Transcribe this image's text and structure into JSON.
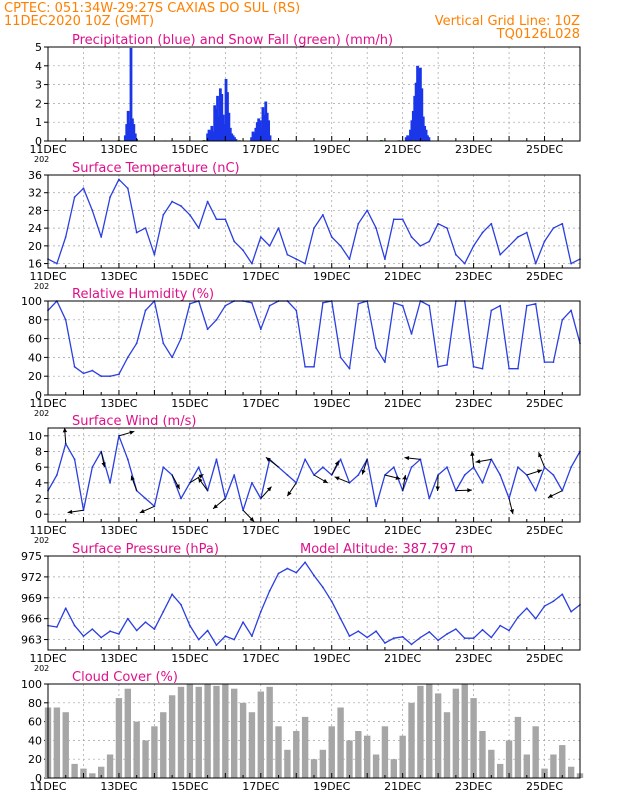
{
  "header": {
    "station": "CPTEC:  051:34W-29:27S  CAXIAS DO SUL (RS)",
    "run": "11DEC2020 10Z (GMT)",
    "grid_note": "Vertical Grid Line: 10Z",
    "code": "TQ0126L028",
    "clipped_label": "202"
  },
  "colors": {
    "header": "#ff8000",
    "title": "#e0108a",
    "line": "#2b3fe0",
    "precip": "#1a36e8",
    "snow": "#19a319",
    "cloud": "#a6a6a6",
    "grid": "#a0a0a0",
    "wind_arrow": "#000000"
  },
  "date_labels": [
    "11DEC",
    "13DEC",
    "15DEC",
    "17DEC",
    "19DEC",
    "21DEC",
    "23DEC",
    "25DEC"
  ],
  "chart_data": [
    {
      "id": "precip",
      "type": "bar",
      "title": "Precipitation (blue) and Snow Fall (green) (mm/h)",
      "ylim": [
        0,
        5
      ],
      "yticks": [
        "0",
        "1",
        "2",
        "3",
        "4",
        "5"
      ],
      "x_unit": "days since 11DEC2020 10Z",
      "series": [
        {
          "name": "Precipitation",
          "color": "#1a36e8",
          "x": [
            2.18,
            2.22,
            2.26,
            2.3,
            2.34,
            2.38,
            2.42,
            2.46,
            2.5,
            4.5,
            4.54,
            4.58,
            4.62,
            4.66,
            4.7,
            4.74,
            4.78,
            4.82,
            4.86,
            4.9,
            4.94,
            4.98,
            5.02,
            5.06,
            5.1,
            5.14,
            5.18,
            5.22,
            5.26,
            5.3,
            5.74,
            5.78,
            5.82,
            5.86,
            5.9,
            5.94,
            5.98,
            6.02,
            6.06,
            6.1,
            6.14,
            6.18,
            6.22,
            6.26,
            10.1,
            10.14,
            10.18,
            10.22,
            10.26,
            10.3,
            10.34,
            10.38,
            10.42,
            10.46,
            10.5,
            10.54,
            10.58,
            10.62,
            10.66,
            10.7,
            10.74
          ],
          "values": [
            0.3,
            0.9,
            1.6,
            1.0,
            4.95,
            1.2,
            0.9,
            0.4,
            0.1,
            0.4,
            0.6,
            0.5,
            0.8,
            0.5,
            1.9,
            1.7,
            2.4,
            1.3,
            2.8,
            2.5,
            1.4,
            0.9,
            3.3,
            2.6,
            1.5,
            0.7,
            0.4,
            0.3,
            0.2,
            0.1,
            0.2,
            0.5,
            0.4,
            0.7,
            1.0,
            1.2,
            1.1,
            0.6,
            1.8,
            1.4,
            2.1,
            1.5,
            1.1,
            0.3,
            0.2,
            0.3,
            0.2,
            0.6,
            1.1,
            1.6,
            2.4,
            3.1,
            4.0,
            3.5,
            3.9,
            2.8,
            1.3,
            0.8,
            0.6,
            0.3,
            0.2
          ]
        },
        {
          "name": "Snow Fall",
          "color": "#19a319",
          "x": [
            2.0,
            2.5,
            3.3,
            4.4,
            5.4,
            6.5,
            9.4,
            9.9,
            10.3
          ],
          "values": [
            0.05,
            0.04,
            0.03,
            0.05,
            0.04,
            0.05,
            0.05,
            0.04,
            0.04
          ]
        }
      ]
    },
    {
      "id": "temp",
      "type": "line",
      "title": "Surface Temperature (nC)",
      "ylim": [
        15,
        36
      ],
      "yticks": [
        "16",
        "20",
        "24",
        "28",
        "32",
        "36"
      ],
      "x": [
        0,
        0.25,
        0.5,
        0.75,
        1,
        1.25,
        1.5,
        1.75,
        2,
        2.25,
        2.5,
        2.75,
        3,
        3.25,
        3.5,
        3.75,
        4,
        4.25,
        4.5,
        4.75,
        5,
        5.25,
        5.5,
        5.75,
        6,
        6.25,
        6.5,
        6.75,
        7,
        7.25,
        7.5,
        7.75,
        8,
        8.25,
        8.5,
        8.75,
        9,
        9.25,
        9.5,
        9.75,
        10,
        10.25,
        10.5,
        10.75,
        11,
        11.25,
        11.5,
        11.75,
        12,
        12.25,
        12.5,
        12.75,
        13,
        13.25,
        13.5,
        13.75,
        14,
        14.25,
        14.5,
        14.75,
        15
      ],
      "values": [
        17,
        16,
        22,
        31,
        33,
        28,
        22,
        31,
        35,
        33,
        23,
        24,
        18,
        27,
        30,
        29,
        27,
        24,
        30,
        26,
        26,
        21,
        19,
        16,
        22,
        20,
        24,
        18,
        17,
        16,
        24,
        27,
        22,
        20,
        17,
        25,
        28,
        24,
        17,
        26,
        26,
        22,
        20,
        21,
        25,
        24,
        18,
        16,
        20,
        23,
        25,
        18,
        20,
        22,
        23,
        16,
        21,
        24,
        25,
        16,
        17
      ]
    },
    {
      "id": "rh",
      "type": "line",
      "title": "Relative Humidity (%)",
      "ylim": [
        0,
        100
      ],
      "yticks": [
        "0",
        "20",
        "40",
        "60",
        "80",
        "100"
      ],
      "x": [
        0,
        0.25,
        0.5,
        0.75,
        1,
        1.25,
        1.5,
        1.75,
        2,
        2.25,
        2.5,
        2.75,
        3,
        3.25,
        3.5,
        3.75,
        4,
        4.25,
        4.5,
        4.75,
        5,
        5.25,
        5.5,
        5.75,
        6,
        6.25,
        6.5,
        6.75,
        7,
        7.25,
        7.5,
        7.75,
        8,
        8.25,
        8.5,
        8.75,
        9,
        9.25,
        9.5,
        9.75,
        10,
        10.25,
        10.5,
        10.75,
        11,
        11.25,
        11.5,
        11.75,
        12,
        12.25,
        12.5,
        12.75,
        13,
        13.25,
        13.5,
        13.75,
        14,
        14.25,
        14.5,
        14.75,
        15
      ],
      "values": [
        90,
        100,
        80,
        30,
        23,
        26,
        20,
        20,
        22,
        40,
        55,
        90,
        100,
        55,
        40,
        60,
        97,
        100,
        70,
        80,
        95,
        100,
        100,
        98,
        70,
        95,
        100,
        100,
        90,
        30,
        30,
        98,
        100,
        40,
        28,
        97,
        100,
        50,
        35,
        98,
        95,
        65,
        100,
        95,
        30,
        32,
        100,
        100,
        30,
        28,
        90,
        95,
        28,
        28,
        95,
        97,
        35,
        35,
        80,
        90,
        55
      ]
    },
    {
      "id": "wind",
      "type": "line",
      "title": "Surface Wind (m/s)",
      "ylim": [
        -1,
        11
      ],
      "yticks": [
        "0",
        "2",
        "4",
        "6",
        "8",
        "10"
      ],
      "x": [
        0,
        0.25,
        0.5,
        0.75,
        1,
        1.25,
        1.5,
        1.75,
        2,
        2.25,
        2.5,
        2.75,
        3,
        3.25,
        3.5,
        3.75,
        4,
        4.25,
        4.5,
        4.75,
        5,
        5.25,
        5.5,
        5.75,
        6,
        6.25,
        6.5,
        6.75,
        7,
        7.25,
        7.5,
        7.75,
        8,
        8.25,
        8.5,
        8.75,
        9,
        9.25,
        9.5,
        9.75,
        10,
        10.25,
        10.5,
        10.75,
        11,
        11.25,
        11.5,
        11.75,
        12,
        12.25,
        12.5,
        12.75,
        13,
        13.25,
        13.5,
        13.75,
        14,
        14.25,
        14.5,
        14.75,
        15
      ],
      "values": [
        3,
        5,
        9,
        7,
        0.5,
        6,
        8,
        4,
        10,
        7,
        3,
        2,
        1,
        6,
        5,
        2,
        4,
        6,
        3,
        7,
        2,
        5,
        0.5,
        4,
        2,
        7,
        6,
        5,
        4,
        7,
        5,
        6,
        5,
        7,
        4,
        5,
        7,
        1,
        5,
        6,
        3,
        6,
        7,
        2,
        5,
        6,
        3,
        5,
        6,
        4,
        7,
        5,
        2,
        6,
        5,
        3,
        6,
        5,
        3,
        6,
        8
      ]
    },
    {
      "id": "pressure",
      "type": "line",
      "title": "Surface Pressure (hPa)",
      "annotation": "Model Altitude: 387.797 m",
      "ylim": [
        961.5,
        975
      ],
      "yticks": [
        "963",
        "966",
        "969",
        "972",
        "975"
      ],
      "x": [
        0,
        0.25,
        0.5,
        0.75,
        1,
        1.25,
        1.5,
        1.75,
        2,
        2.25,
        2.5,
        2.75,
        3,
        3.25,
        3.5,
        3.75,
        4,
        4.25,
        4.5,
        4.75,
        5,
        5.25,
        5.5,
        5.75,
        6,
        6.25,
        6.5,
        6.75,
        7,
        7.25,
        7.5,
        7.75,
        8,
        8.25,
        8.5,
        8.75,
        9,
        9.25,
        9.5,
        9.75,
        10,
        10.25,
        10.5,
        10.75,
        11,
        11.25,
        11.5,
        11.75,
        12,
        12.25,
        12.5,
        12.75,
        13,
        13.25,
        13.5,
        13.75,
        14,
        14.25,
        14.5,
        14.75,
        15
      ],
      "values": [
        965,
        964.8,
        967.5,
        965,
        963.5,
        964.5,
        963.3,
        964.2,
        963.8,
        966,
        964.3,
        965.5,
        964.5,
        967,
        969.5,
        968,
        965,
        963,
        964.3,
        962.2,
        963.5,
        963,
        965.5,
        963.5,
        967,
        970,
        972.5,
        973.2,
        972.6,
        974.1,
        972.2,
        970.5,
        968.5,
        966,
        963.5,
        964.2,
        963.3,
        964.2,
        962.5,
        963.2,
        963.4,
        962.3,
        963.3,
        964.1,
        962.9,
        963.8,
        964.5,
        963.2,
        963.2,
        964.4,
        963.3,
        965,
        964.3,
        966.2,
        967.5,
        966,
        967.8,
        968.5,
        969.5,
        967,
        968
      ]
    },
    {
      "id": "cloud",
      "type": "bar",
      "title": "Cloud Cover (%)",
      "ylim": [
        0,
        100
      ],
      "yticks": [
        "0",
        "20",
        "40",
        "60",
        "80",
        "100"
      ],
      "x": [
        0,
        0.25,
        0.5,
        0.75,
        1,
        1.25,
        1.5,
        1.75,
        2,
        2.25,
        2.5,
        2.75,
        3,
        3.25,
        3.5,
        3.75,
        4,
        4.25,
        4.5,
        4.75,
        5,
        5.25,
        5.5,
        5.75,
        6,
        6.25,
        6.5,
        6.75,
        7,
        7.25,
        7.5,
        7.75,
        8,
        8.25,
        8.5,
        8.75,
        9,
        9.25,
        9.5,
        9.75,
        10,
        10.25,
        10.5,
        10.75,
        11,
        11.25,
        11.5,
        11.75,
        12,
        12.25,
        12.5,
        12.75,
        13,
        13.25,
        13.5,
        13.75,
        14,
        14.25,
        14.5,
        14.75,
        15
      ],
      "values": [
        75,
        75,
        70,
        15,
        10,
        5,
        12,
        25,
        85,
        95,
        60,
        40,
        55,
        70,
        88,
        97,
        100,
        97,
        100,
        98,
        100,
        95,
        80,
        70,
        92,
        97,
        55,
        30,
        50,
        65,
        20,
        30,
        55,
        75,
        40,
        50,
        45,
        25,
        55,
        20,
        45,
        80,
        98,
        100,
        90,
        70,
        95,
        100,
        85,
        50,
        30,
        15,
        40,
        65,
        25,
        55,
        10,
        25,
        35,
        12,
        5
      ]
    }
  ]
}
